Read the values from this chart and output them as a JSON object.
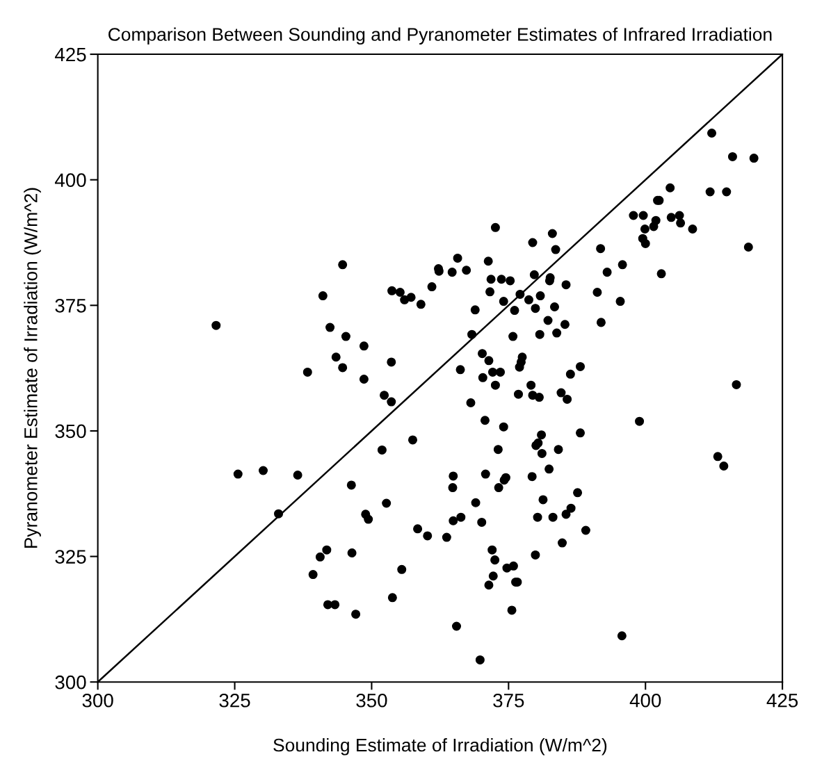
{
  "chart_data": {
    "type": "scatter",
    "title": "Comparison Between Sounding and Pyranometer Estimates of Infrared Irradiation",
    "xlabel": "Sounding Estimate of Irradiation (W/m^2)",
    "ylabel": "Pyranometer Estimate of Irradiation (W/m^2)",
    "xlim": [
      300,
      425
    ],
    "ylim": [
      300,
      425
    ],
    "xticks": [
      300,
      325,
      350,
      375,
      400,
      425
    ],
    "yticks": [
      300,
      325,
      350,
      375,
      400,
      425
    ],
    "grid": false,
    "legend": false,
    "series": [
      {
        "color": "#000000",
        "marker": "circle",
        "x": [
          321.6,
          325.6,
          330.2,
          333.0,
          336.5,
          338.3,
          339.3,
          340.6,
          341.1,
          341.8,
          342.0,
          342.4,
          343.3,
          343.5,
          344.7,
          344.7,
          345.3,
          346.3,
          346.4,
          347.1,
          348.6,
          348.6,
          348.9,
          349.4,
          351.9,
          352.3,
          352.7,
          353.6,
          353.6,
          353.7,
          353.8,
          355.2,
          355.5,
          356.0,
          357.2,
          357.5,
          358.4,
          359.0,
          360.2,
          361.0,
          362.2,
          362.3,
          363.7,
          364.7,
          364.8,
          364.9,
          364.9,
          365.5,
          365.7,
          366.2,
          366.3,
          367.3,
          368.1,
          368.3,
          368.9,
          369.0,
          369.8,
          370.1,
          370.2,
          370.3,
          370.7,
          370.8,
          371.3,
          371.4,
          371.4,
          371.6,
          371.8,
          372.0,
          372.1,
          372.2,
          372.5,
          372.6,
          372.6,
          373.1,
          373.2,
          373.5,
          373.7,
          374.1,
          374.1,
          374.2,
          374.5,
          374.7,
          375.3,
          375.6,
          375.8,
          375.9,
          376.1,
          376.3,
          376.6,
          376.8,
          377.0,
          377.1,
          377.3,
          377.5,
          378.7,
          379.1,
          379.3,
          379.4,
          379.4,
          379.7,
          379.9,
          379.9,
          380.0,
          380.3,
          380.4,
          380.6,
          380.8,
          380.7,
          381.0,
          381.1,
          381.3,
          382.2,
          382.4,
          382.5,
          382.6,
          383.0,
          383.1,
          383.4,
          383.6,
          383.8,
          384.1,
          384.6,
          384.8,
          385.3,
          385.5,
          385.5,
          385.7,
          386.3,
          386.4,
          387.6,
          388.1,
          388.1,
          389.1,
          391.2,
          391.8,
          391.9,
          393.0,
          395.4,
          395.8,
          395.7,
          397.8,
          398.9,
          399.5,
          399.6,
          399.9,
          400.0,
          401.5,
          401.9,
          402.2,
          402.5,
          402.9,
          404.5,
          404.7,
          406.2,
          406.4,
          408.6,
          411.8,
          412.1,
          413.2,
          414.3,
          414.8,
          415.9,
          416.6,
          418.8,
          419.8
        ],
        "values": [
          371.0,
          341.4,
          342.1,
          333.5,
          341.2,
          361.7,
          321.4,
          324.9,
          376.9,
          326.3,
          315.4,
          370.6,
          315.4,
          364.7,
          362.6,
          383.1,
          368.8,
          339.2,
          325.7,
          313.5,
          366.9,
          360.3,
          333.4,
          332.4,
          346.2,
          357.1,
          335.6,
          363.7,
          355.8,
          377.9,
          316.8,
          377.6,
          322.4,
          376.1,
          376.6,
          348.2,
          330.5,
          375.2,
          329.1,
          378.7,
          382.3,
          381.8,
          328.8,
          381.6,
          338.7,
          341.0,
          332.1,
          311.1,
          384.4,
          362.2,
          332.8,
          382.0,
          355.6,
          369.2,
          374.1,
          335.7,
          304.4,
          331.8,
          365.4,
          360.6,
          352.1,
          341.4,
          383.8,
          364.0,
          319.3,
          377.7,
          380.2,
          326.3,
          361.7,
          321.1,
          324.3,
          390.5,
          359.1,
          346.3,
          338.7,
          361.7,
          380.2,
          375.8,
          350.8,
          340.2,
          340.7,
          322.7,
          379.9,
          314.3,
          368.8,
          323.1,
          374.0,
          319.9,
          319.9,
          357.3,
          362.7,
          377.2,
          363.7,
          364.7,
          376.1,
          359.1,
          340.9,
          387.5,
          357.1,
          381.1,
          325.3,
          374.4,
          347.1,
          332.8,
          347.6,
          356.7,
          376.9,
          369.2,
          349.2,
          345.5,
          336.3,
          372.0,
          342.4,
          379.9,
          380.5,
          389.3,
          332.8,
          374.7,
          386.1,
          369.5,
          346.3,
          357.6,
          327.7,
          371.2,
          333.4,
          379.1,
          356.3,
          361.3,
          334.6,
          337.7,
          362.8,
          349.6,
          330.2,
          377.6,
          386.3,
          371.6,
          381.6,
          375.8,
          383.1,
          309.2,
          392.9,
          351.9,
          388.3,
          392.9,
          390.2,
          387.3,
          390.7,
          391.9,
          395.9,
          395.9,
          381.3,
          398.4,
          392.5,
          392.9,
          391.4,
          390.2,
          397.6,
          409.3,
          344.9,
          343.0,
          397.6,
          404.6,
          359.2,
          386.6,
          404.3
        ]
      },
      {
        "type": "line",
        "marker": "none",
        "color": "#000000",
        "x": [
          300,
          425
        ],
        "values": [
          300,
          425
        ]
      }
    ]
  }
}
